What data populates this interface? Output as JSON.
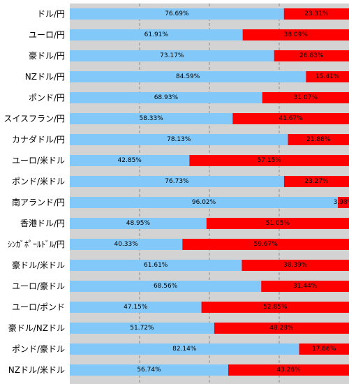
{
  "chart_data": {
    "type": "bar",
    "orientation": "horizontal",
    "stacked": true,
    "xlim": [
      0,
      100
    ],
    "grid": true,
    "categories": [
      "ドル/円",
      "ユーロ/円",
      "豪ドル/円",
      "NZドル/円",
      "ポンド/円",
      "スイスフラン/円",
      "カナダドル/円",
      "ユーロ/米ドル",
      "ポンド/米ドル",
      "南アランド/円",
      "香港ドル/円",
      "ｼﾝｶﾞﾎﾟｰﾙﾄﾞﾙ/円",
      "豪ドル/米ドル",
      "ユーロ/豪ドル",
      "ユーロ/ポンド",
      "豪ドル/NZドル",
      "ポンド/豪ドル",
      "NZドル/米ドル"
    ],
    "series": [
      {
        "color": "#82c8f8",
        "values": [
          76.69,
          61.91,
          73.17,
          84.59,
          68.93,
          58.33,
          78.13,
          42.85,
          76.73,
          96.02,
          48.95,
          40.33,
          61.61,
          68.56,
          47.15,
          51.72,
          82.14,
          56.74
        ],
        "labels": [
          "76.69%",
          "61.91%",
          "73.17%",
          "84.59%",
          "68.93%",
          "58.33%",
          "78.13%",
          "42.85%",
          "76.73%",
          "96.02%",
          "48.95%",
          "40.33%",
          "61.61%",
          "68.56%",
          "47.15%",
          "51.72%",
          "82.14%",
          "56.74%"
        ]
      },
      {
        "color": "#ff0000",
        "values": [
          23.31,
          38.09,
          26.83,
          15.41,
          31.07,
          41.67,
          21.88,
          57.15,
          23.27,
          3.98,
          51.05,
          59.67,
          38.39,
          31.44,
          52.85,
          48.28,
          17.86,
          43.26
        ],
        "labels": [
          "23.31%",
          "38.09%",
          "26.83%",
          "15.41%",
          "31.07%",
          "41.67%",
          "21.88%",
          "57.15%",
          "23.27%",
          "3.98%",
          "51.05%",
          "59.67%",
          "38.39%",
          "31.44%",
          "52.85%",
          "48.28%",
          "17.86%",
          "43.26%"
        ]
      }
    ]
  }
}
